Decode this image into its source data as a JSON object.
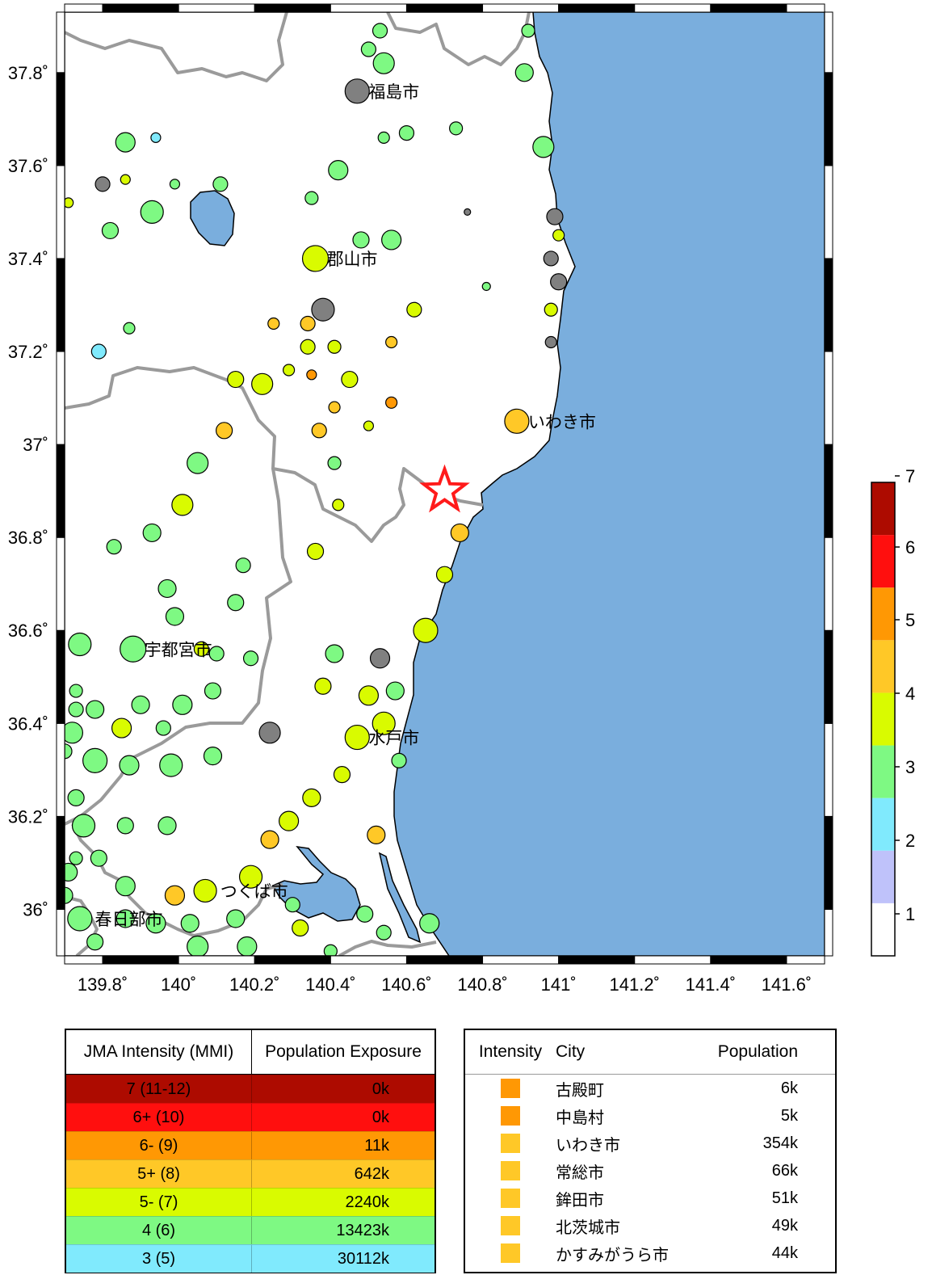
{
  "map": {
    "lon_range": [
      139.7,
      141.7
    ],
    "lat_range": [
      35.9,
      37.93
    ],
    "lon_ticks": [
      {
        "value": 139.8,
        "label": "139.8˚"
      },
      {
        "value": 140.0,
        "label": "140˚"
      },
      {
        "value": 140.2,
        "label": "140.2˚"
      },
      {
        "value": 140.4,
        "label": "140.4˚"
      },
      {
        "value": 140.6,
        "label": "140.6˚"
      },
      {
        "value": 140.8,
        "label": "140.8˚"
      },
      {
        "value": 141.0,
        "label": "141˚"
      },
      {
        "value": 141.2,
        "label": "141.2˚"
      },
      {
        "value": 141.4,
        "label": "141.4˚"
      },
      {
        "value": 141.6,
        "label": "141.6˚"
      }
    ],
    "lat_ticks": [
      {
        "value": 37.8,
        "label": "37.8˚"
      },
      {
        "value": 37.6,
        "label": "37.6˚"
      },
      {
        "value": 37.4,
        "label": "37.4˚"
      },
      {
        "value": 37.2,
        "label": "37.2˚"
      },
      {
        "value": 37.0,
        "label": "37˚"
      },
      {
        "value": 36.8,
        "label": "36.8˚"
      },
      {
        "value": 36.6,
        "label": "36.6˚"
      },
      {
        "value": 36.4,
        "label": "36.4˚"
      },
      {
        "value": 36.2,
        "label": "36.2˚"
      },
      {
        "value": 36.0,
        "label": "36˚"
      }
    ],
    "colors": {
      "sea": "#7aaedd",
      "land": "#ffffff",
      "boundary": "#9a9a9a",
      "epicenter": "#ff1a1a"
    },
    "epicenter": {
      "lon": 140.7,
      "lat": 36.9
    },
    "cities": [
      {
        "name": "福島市",
        "lon": 140.47,
        "lat": 37.76
      },
      {
        "name": "郡山市",
        "lon": 140.36,
        "lat": 37.4
      },
      {
        "name": "いわき市",
        "lon": 140.89,
        "lat": 37.05
      },
      {
        "name": "宇都宮市",
        "lon": 139.88,
        "lat": 36.56
      },
      {
        "name": "水戸市",
        "lon": 140.47,
        "lat": 36.37
      },
      {
        "name": "つくば市",
        "lon": 140.08,
        "lat": 36.04
      },
      {
        "name": "春日部市",
        "lon": 139.75,
        "lat": 35.98
      }
    ],
    "stations": [
      {
        "lon": 140.53,
        "lat": 37.89,
        "i": "4",
        "s": 9
      },
      {
        "lon": 140.5,
        "lat": 37.85,
        "i": "4",
        "s": 9
      },
      {
        "lon": 140.54,
        "lat": 37.82,
        "i": "4",
        "s": 13
      },
      {
        "lon": 140.47,
        "lat": 37.76,
        "i": "na",
        "s": 15
      },
      {
        "lon": 140.92,
        "lat": 37.89,
        "i": "4",
        "s": 8
      },
      {
        "lon": 140.91,
        "lat": 37.8,
        "i": "4",
        "s": 11
      },
      {
        "lon": 140.73,
        "lat": 37.68,
        "i": "4",
        "s": 8
      },
      {
        "lon": 140.6,
        "lat": 37.67,
        "i": "4",
        "s": 9
      },
      {
        "lon": 140.54,
        "lat": 37.66,
        "i": "4",
        "s": 7
      },
      {
        "lon": 140.96,
        "lat": 37.64,
        "i": "4",
        "s": 13
      },
      {
        "lon": 139.86,
        "lat": 37.65,
        "i": "4",
        "s": 12
      },
      {
        "lon": 139.94,
        "lat": 37.66,
        "i": "3",
        "s": 6
      },
      {
        "lon": 139.8,
        "lat": 37.56,
        "i": "na",
        "s": 9
      },
      {
        "lon": 139.86,
        "lat": 37.57,
        "i": "5-",
        "s": 6
      },
      {
        "lon": 139.99,
        "lat": 37.56,
        "i": "4",
        "s": 6
      },
      {
        "lon": 140.11,
        "lat": 37.56,
        "i": "4",
        "s": 9
      },
      {
        "lon": 140.42,
        "lat": 37.59,
        "i": "4",
        "s": 12
      },
      {
        "lon": 140.35,
        "lat": 37.53,
        "i": "4",
        "s": 8
      },
      {
        "lon": 139.71,
        "lat": 37.52,
        "i": "5-",
        "s": 6
      },
      {
        "lon": 139.93,
        "lat": 37.5,
        "i": "4",
        "s": 14
      },
      {
        "lon": 139.82,
        "lat": 37.46,
        "i": "4",
        "s": 10
      },
      {
        "lon": 140.48,
        "lat": 37.44,
        "i": "4",
        "s": 10
      },
      {
        "lon": 140.56,
        "lat": 37.44,
        "i": "4",
        "s": 12
      },
      {
        "lon": 140.36,
        "lat": 37.4,
        "i": "5-",
        "s": 16
      },
      {
        "lon": 140.76,
        "lat": 37.5,
        "i": "na",
        "s": 4
      },
      {
        "lon": 140.99,
        "lat": 37.49,
        "i": "na",
        "s": 10
      },
      {
        "lon": 141.0,
        "lat": 37.45,
        "i": "5-",
        "s": 7
      },
      {
        "lon": 140.98,
        "lat": 37.4,
        "i": "na",
        "s": 9
      },
      {
        "lon": 141.0,
        "lat": 37.35,
        "i": "na",
        "s": 10
      },
      {
        "lon": 140.81,
        "lat": 37.34,
        "i": "4",
        "s": 5
      },
      {
        "lon": 140.98,
        "lat": 37.29,
        "i": "5-",
        "s": 8
      },
      {
        "lon": 140.98,
        "lat": 37.22,
        "i": "na",
        "s": 7
      },
      {
        "lon": 140.38,
        "lat": 37.29,
        "i": "na",
        "s": 14
      },
      {
        "lon": 140.62,
        "lat": 37.29,
        "i": "5-",
        "s": 9
      },
      {
        "lon": 140.25,
        "lat": 37.26,
        "i": "5+",
        "s": 7
      },
      {
        "lon": 140.34,
        "lat": 37.26,
        "i": "5+",
        "s": 9
      },
      {
        "lon": 139.87,
        "lat": 37.25,
        "i": "4",
        "s": 7
      },
      {
        "lon": 139.79,
        "lat": 37.2,
        "i": "3",
        "s": 9
      },
      {
        "lon": 140.34,
        "lat": 37.21,
        "i": "5-",
        "s": 9
      },
      {
        "lon": 140.41,
        "lat": 37.21,
        "i": "5-",
        "s": 8
      },
      {
        "lon": 140.56,
        "lat": 37.22,
        "i": "5+",
        "s": 7
      },
      {
        "lon": 140.29,
        "lat": 37.16,
        "i": "5-",
        "s": 7
      },
      {
        "lon": 140.35,
        "lat": 37.15,
        "i": "6-",
        "s": 6
      },
      {
        "lon": 140.15,
        "lat": 37.14,
        "i": "5-",
        "s": 10
      },
      {
        "lon": 140.22,
        "lat": 37.13,
        "i": "5-",
        "s": 13
      },
      {
        "lon": 140.45,
        "lat": 37.14,
        "i": "5-",
        "s": 10
      },
      {
        "lon": 140.41,
        "lat": 37.08,
        "i": "5+",
        "s": 7
      },
      {
        "lon": 140.56,
        "lat": 37.09,
        "i": "6-",
        "s": 7
      },
      {
        "lon": 140.89,
        "lat": 37.05,
        "i": "5+",
        "s": 15
      },
      {
        "lon": 140.5,
        "lat": 37.04,
        "i": "5-",
        "s": 6
      },
      {
        "lon": 140.37,
        "lat": 37.03,
        "i": "5+",
        "s": 9
      },
      {
        "lon": 140.12,
        "lat": 37.03,
        "i": "5+",
        "s": 10
      },
      {
        "lon": 140.05,
        "lat": 36.96,
        "i": "4",
        "s": 13
      },
      {
        "lon": 140.41,
        "lat": 36.96,
        "i": "4",
        "s": 8
      },
      {
        "lon": 140.42,
        "lat": 36.87,
        "i": "5-",
        "s": 7
      },
      {
        "lon": 140.01,
        "lat": 36.87,
        "i": "5-",
        "s": 13
      },
      {
        "lon": 139.93,
        "lat": 36.81,
        "i": "4",
        "s": 11
      },
      {
        "lon": 139.83,
        "lat": 36.78,
        "i": "4",
        "s": 9
      },
      {
        "lon": 140.74,
        "lat": 36.81,
        "i": "5+",
        "s": 11
      },
      {
        "lon": 140.36,
        "lat": 36.77,
        "i": "5-",
        "s": 10
      },
      {
        "lon": 140.17,
        "lat": 36.74,
        "i": "4",
        "s": 9
      },
      {
        "lon": 140.7,
        "lat": 36.72,
        "i": "5-",
        "s": 10
      },
      {
        "lon": 139.97,
        "lat": 36.69,
        "i": "4",
        "s": 11
      },
      {
        "lon": 140.15,
        "lat": 36.66,
        "i": "4",
        "s": 10
      },
      {
        "lon": 139.99,
        "lat": 36.63,
        "i": "4",
        "s": 11
      },
      {
        "lon": 140.65,
        "lat": 36.6,
        "i": "5-",
        "s": 15
      },
      {
        "lon": 139.74,
        "lat": 36.57,
        "i": "4",
        "s": 14
      },
      {
        "lon": 139.88,
        "lat": 36.56,
        "i": "4",
        "s": 16
      },
      {
        "lon": 140.06,
        "lat": 36.56,
        "i": "5-",
        "s": 9
      },
      {
        "lon": 140.1,
        "lat": 36.55,
        "i": "4",
        "s": 9
      },
      {
        "lon": 140.19,
        "lat": 36.54,
        "i": "4",
        "s": 9
      },
      {
        "lon": 140.41,
        "lat": 36.55,
        "i": "4",
        "s": 11
      },
      {
        "lon": 140.53,
        "lat": 36.54,
        "i": "na",
        "s": 12
      },
      {
        "lon": 140.38,
        "lat": 36.48,
        "i": "5-",
        "s": 10
      },
      {
        "lon": 140.57,
        "lat": 36.47,
        "i": "4",
        "s": 11
      },
      {
        "lon": 140.5,
        "lat": 36.46,
        "i": "5-",
        "s": 12
      },
      {
        "lon": 139.73,
        "lat": 36.47,
        "i": "4",
        "s": 8
      },
      {
        "lon": 140.09,
        "lat": 36.47,
        "i": "4",
        "s": 10
      },
      {
        "lon": 139.9,
        "lat": 36.44,
        "i": "4",
        "s": 11
      },
      {
        "lon": 140.01,
        "lat": 36.44,
        "i": "4",
        "s": 12
      },
      {
        "lon": 139.73,
        "lat": 36.43,
        "i": "4",
        "s": 9
      },
      {
        "lon": 139.78,
        "lat": 36.43,
        "i": "4",
        "s": 11
      },
      {
        "lon": 139.85,
        "lat": 36.39,
        "i": "5-",
        "s": 12
      },
      {
        "lon": 139.96,
        "lat": 36.39,
        "i": "4",
        "s": 9
      },
      {
        "lon": 139.72,
        "lat": 36.38,
        "i": "4",
        "s": 13
      },
      {
        "lon": 140.24,
        "lat": 36.38,
        "i": "na",
        "s": 13
      },
      {
        "lon": 140.54,
        "lat": 36.4,
        "i": "5-",
        "s": 14
      },
      {
        "lon": 140.47,
        "lat": 36.37,
        "i": "5-",
        "s": 15
      },
      {
        "lon": 139.7,
        "lat": 36.34,
        "i": "4",
        "s": 9
      },
      {
        "lon": 139.78,
        "lat": 36.32,
        "i": "4",
        "s": 15
      },
      {
        "lon": 139.87,
        "lat": 36.31,
        "i": "4",
        "s": 12
      },
      {
        "lon": 139.98,
        "lat": 36.31,
        "i": "4",
        "s": 14
      },
      {
        "lon": 140.09,
        "lat": 36.33,
        "i": "4",
        "s": 11
      },
      {
        "lon": 140.58,
        "lat": 36.32,
        "i": "4",
        "s": 9
      },
      {
        "lon": 140.43,
        "lat": 36.29,
        "i": "5-",
        "s": 10
      },
      {
        "lon": 139.73,
        "lat": 36.24,
        "i": "4",
        "s": 10
      },
      {
        "lon": 140.35,
        "lat": 36.24,
        "i": "5-",
        "s": 11
      },
      {
        "lon": 140.29,
        "lat": 36.19,
        "i": "5-",
        "s": 12
      },
      {
        "lon": 139.75,
        "lat": 36.18,
        "i": "4",
        "s": 14
      },
      {
        "lon": 139.86,
        "lat": 36.18,
        "i": "4",
        "s": 10
      },
      {
        "lon": 139.97,
        "lat": 36.18,
        "i": "4",
        "s": 11
      },
      {
        "lon": 140.24,
        "lat": 36.15,
        "i": "5+",
        "s": 11
      },
      {
        "lon": 140.52,
        "lat": 36.16,
        "i": "5+",
        "s": 11
      },
      {
        "lon": 139.73,
        "lat": 36.11,
        "i": "4",
        "s": 8
      },
      {
        "lon": 139.79,
        "lat": 36.11,
        "i": "4",
        "s": 10
      },
      {
        "lon": 139.71,
        "lat": 36.08,
        "i": "4",
        "s": 11
      },
      {
        "lon": 140.19,
        "lat": 36.07,
        "i": "5-",
        "s": 14
      },
      {
        "lon": 139.86,
        "lat": 36.05,
        "i": "4",
        "s": 12
      },
      {
        "lon": 139.7,
        "lat": 36.03,
        "i": "4",
        "s": 10
      },
      {
        "lon": 139.99,
        "lat": 36.03,
        "i": "5+",
        "s": 12
      },
      {
        "lon": 140.07,
        "lat": 36.04,
        "i": "5-",
        "s": 14
      },
      {
        "lon": 140.3,
        "lat": 36.01,
        "i": "4",
        "s": 9
      },
      {
        "lon": 140.49,
        "lat": 35.99,
        "i": "4",
        "s": 10
      },
      {
        "lon": 139.74,
        "lat": 35.98,
        "i": "4",
        "s": 15
      },
      {
        "lon": 139.86,
        "lat": 35.98,
        "i": "4",
        "s": 11
      },
      {
        "lon": 139.94,
        "lat": 35.97,
        "i": "4",
        "s": 12
      },
      {
        "lon": 140.03,
        "lat": 35.97,
        "i": "4",
        "s": 11
      },
      {
        "lon": 140.15,
        "lat": 35.98,
        "i": "4",
        "s": 11
      },
      {
        "lon": 140.32,
        "lat": 35.96,
        "i": "5-",
        "s": 10
      },
      {
        "lon": 140.54,
        "lat": 35.95,
        "i": "4",
        "s": 9
      },
      {
        "lon": 140.66,
        "lat": 35.97,
        "i": "4",
        "s": 12
      },
      {
        "lon": 139.78,
        "lat": 35.93,
        "i": "4",
        "s": 10
      },
      {
        "lon": 140.05,
        "lat": 35.92,
        "i": "4",
        "s": 13
      },
      {
        "lon": 140.18,
        "lat": 35.92,
        "i": "4",
        "s": 12
      },
      {
        "lon": 140.4,
        "lat": 35.91,
        "i": "4",
        "s": 8
      }
    ]
  },
  "intensity_scale": {
    "levels": [
      {
        "key": "1",
        "color": "#ffffff"
      },
      {
        "key": "2",
        "color": "#bfc2fa"
      },
      {
        "key": "3",
        "color": "#80eafd"
      },
      {
        "key": "4",
        "color": "#7ef983"
      },
      {
        "key": "5-",
        "color": "#d9fb00"
      },
      {
        "key": "5+",
        "color": "#ffc827"
      },
      {
        "key": "6-",
        "color": "#ff9804"
      },
      {
        "key": "6+",
        "color": "#ff0f0e"
      },
      {
        "key": "7",
        "color": "#ad0b00"
      }
    ],
    "labels": [
      "1",
      "2",
      "3",
      "4",
      "5",
      "6",
      "7"
    ],
    "no_data_color": "#808080"
  },
  "exposure_table": {
    "headers": [
      "JMA Intensity (MMI)",
      "Population Exposure"
    ],
    "rows": [
      {
        "intensity": "7 (11-12)",
        "exposure": "0k",
        "color": "#ad0b00"
      },
      {
        "intensity": "6+ (10)",
        "exposure": "0k",
        "color": "#ff0f0e"
      },
      {
        "intensity": "6- (9)",
        "exposure": "11k",
        "color": "#ff9804"
      },
      {
        "intensity": "5+ (8)",
        "exposure": "642k",
        "color": "#ffc827"
      },
      {
        "intensity": "5- (7)",
        "exposure": "2240k",
        "color": "#d9fb00"
      },
      {
        "intensity": "4 (6)",
        "exposure": "13423k",
        "color": "#7ef983"
      },
      {
        "intensity": "3 (5)",
        "exposure": "30112k",
        "color": "#80eafd"
      }
    ]
  },
  "city_table": {
    "headers": [
      "Intensity",
      "City",
      "Population"
    ],
    "rows": [
      {
        "name": "古殿町",
        "population": "6k",
        "color": "#ff9804"
      },
      {
        "name": "中島村",
        "population": "5k",
        "color": "#ff9804"
      },
      {
        "name": "いわき市",
        "population": "354k",
        "color": "#ffc827"
      },
      {
        "name": "常総市",
        "population": "66k",
        "color": "#ffc827"
      },
      {
        "name": "鉾田市",
        "population": "51k",
        "color": "#ffc827"
      },
      {
        "name": "北茨城市",
        "population": "49k",
        "color": "#ffc827"
      },
      {
        "name": "かすみがうら市",
        "population": "44k",
        "color": "#ffc827"
      }
    ]
  }
}
